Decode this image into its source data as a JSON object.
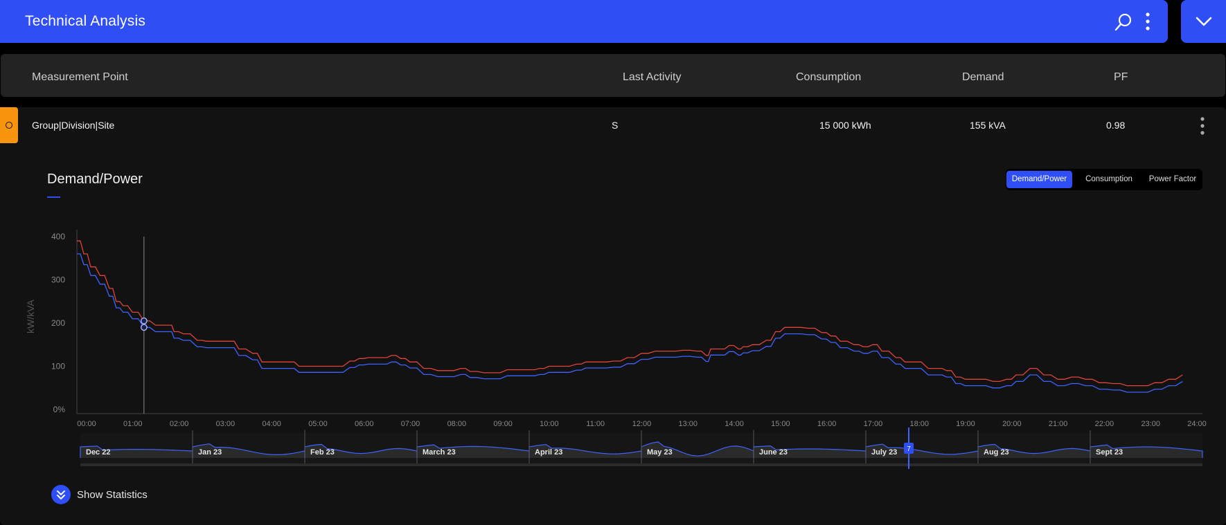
{
  "app": {
    "title": "Technical Analysis"
  },
  "header_icons": [
    "search-icon",
    "kebab-menu-icon",
    "chevron-down-icon"
  ],
  "table": {
    "columns": [
      "Measurement Point",
      "Last Activity",
      "Consumption",
      "Demand",
      "PF"
    ],
    "row": {
      "measurement_point": "Group|Division|Site",
      "last_activity": "S",
      "consumption": "15 000 kWh",
      "demand": "155 kVA",
      "pf": "0.98"
    }
  },
  "chart_panel": {
    "title": "Demand/Power",
    "tabs": [
      {
        "label": "Demand/Power",
        "active": true
      },
      {
        "label": "Consumption",
        "active": false
      },
      {
        "label": "Power Factor",
        "active": false
      }
    ],
    "show_statistics": "Show Statistics"
  },
  "colors": {
    "accent": "#2f4ff5",
    "status": "#f7950e",
    "series_demand": "#e0443a",
    "series_power": "#3e63ff"
  },
  "chart_data": {
    "type": "line",
    "ylabel": "kW/kVA",
    "y_ticks": [
      "0%",
      "100",
      "200",
      "300",
      "400"
    ],
    "ylim": [
      0,
      400
    ],
    "x_ticks": [
      "00:00",
      "01:00",
      "02:00",
      "03:00",
      "04:00",
      "05:00",
      "06:00",
      "07:00",
      "08:00",
      "09:00",
      "10:00",
      "11:00",
      "12:00",
      "13:00",
      "14:00",
      "15:00",
      "16:00",
      "17:00",
      "18:00",
      "19:00",
      "20:00",
      "21:00",
      "22:00",
      "23:00",
      "24:00"
    ],
    "cursor_time": 1.45,
    "series": [
      {
        "name": "",
        "color": "#e0443a",
        "x": [
          0,
          0.15,
          0.3,
          0.5,
          0.7,
          0.85,
          1.0,
          1.2,
          1.45,
          1.7,
          2.0,
          2.1,
          2.3,
          2.6,
          2.8,
          3.0,
          3.3,
          3.5,
          3.8,
          4.0,
          4.3,
          4.6,
          4.8,
          5.0,
          5.3,
          5.6,
          5.9,
          6.1,
          6.3,
          6.6,
          6.8,
          7.0,
          7.2,
          7.5,
          7.8,
          8.0,
          8.3,
          8.5,
          8.8,
          9.0,
          9.3,
          9.6,
          9.8,
          10.0,
          10.2,
          10.5,
          10.8,
          11.0,
          11.3,
          11.6,
          11.9,
          12.2,
          12.5,
          12.8,
          13.1,
          13.4,
          13.6,
          13.7,
          13.9,
          14.1,
          14.3,
          14.4,
          14.6,
          14.9,
          15.1,
          15.3,
          15.5,
          15.8,
          16.1,
          16.3,
          16.5,
          16.8,
          17.0,
          17.2,
          17.4,
          17.7,
          17.9,
          18.1,
          18.4,
          18.6,
          18.8,
          19.0,
          19.2,
          19.5,
          19.8,
          20.1,
          20.3,
          20.6,
          20.9,
          21.2,
          21.5,
          21.8,
          22.1,
          22.4,
          22.7,
          23.0,
          23.3,
          23.6,
          23.9
        ],
        "y": [
          390,
          360,
          330,
          310,
          280,
          250,
          240,
          225,
          205,
          195,
          195,
          180,
          175,
          160,
          158,
          158,
          158,
          140,
          130,
          110,
          110,
          110,
          100,
          100,
          100,
          100,
          112,
          118,
          120,
          120,
          125,
          118,
          110,
          95,
          90,
          90,
          95,
          88,
          85,
          85,
          92,
          92,
          92,
          95,
          100,
          100,
          105,
          110,
          110,
          112,
          120,
          130,
          135,
          135,
          137,
          135,
          125,
          140,
          140,
          148,
          140,
          145,
          150,
          160,
          180,
          190,
          190,
          188,
          178,
          170,
          158,
          150,
          145,
          150,
          135,
          120,
          110,
          110,
          95,
          95,
          90,
          75,
          70,
          70,
          65,
          70,
          80,
          95,
          80,
          70,
          75,
          70,
          62,
          60,
          55,
          55,
          62,
          70,
          80
        ]
      },
      {
        "name": "",
        "color": "#3e63ff",
        "x": [
          0,
          0.15,
          0.3,
          0.5,
          0.7,
          0.85,
          1.0,
          1.2,
          1.45,
          1.7,
          2.0,
          2.1,
          2.3,
          2.6,
          2.8,
          3.0,
          3.3,
          3.5,
          3.8,
          4.0,
          4.3,
          4.6,
          4.8,
          5.0,
          5.3,
          5.6,
          5.9,
          6.1,
          6.3,
          6.6,
          6.8,
          7.0,
          7.2,
          7.5,
          7.8,
          8.0,
          8.3,
          8.5,
          8.8,
          9.0,
          9.3,
          9.6,
          9.8,
          10.0,
          10.2,
          10.5,
          10.8,
          11.0,
          11.3,
          11.6,
          11.9,
          12.2,
          12.5,
          12.8,
          13.1,
          13.4,
          13.6,
          13.7,
          13.9,
          14.1,
          14.3,
          14.4,
          14.6,
          14.9,
          15.1,
          15.3,
          15.5,
          15.8,
          16.1,
          16.3,
          16.5,
          16.8,
          17.0,
          17.2,
          17.4,
          17.7,
          17.9,
          18.1,
          18.4,
          18.6,
          18.8,
          19.0,
          19.2,
          19.5,
          19.8,
          20.1,
          20.3,
          20.6,
          20.9,
          21.2,
          21.5,
          21.8,
          22.1,
          22.4,
          22.7,
          23.0,
          23.3,
          23.6,
          23.9
        ],
        "y": [
          360,
          335,
          310,
          290,
          262,
          235,
          225,
          210,
          190,
          180,
          180,
          165,
          160,
          145,
          143,
          143,
          143,
          125,
          115,
          95,
          95,
          95,
          86,
          86,
          86,
          86,
          97,
          103,
          105,
          105,
          110,
          103,
          96,
          81,
          76,
          76,
          81,
          74,
          71,
          71,
          78,
          78,
          78,
          81,
          86,
          86,
          91,
          96,
          96,
          98,
          106,
          116,
          121,
          121,
          123,
          121,
          111,
          126,
          126,
          134,
          126,
          131,
          136,
          146,
          165,
          175,
          175,
          173,
          163,
          155,
          143,
          135,
          130,
          135,
          120,
          105,
          95,
          95,
          80,
          80,
          75,
          60,
          55,
          55,
          50,
          55,
          65,
          80,
          65,
          55,
          60,
          55,
          47,
          45,
          40,
          40,
          47,
          55,
          65
        ]
      }
    ]
  },
  "timeline": {
    "labels": [
      "Dec 22",
      "Jan 23",
      "Feb 23",
      "March 23",
      "April 23",
      "May 23",
      "June 23",
      "July 23",
      "Aug 23",
      "Sept 23"
    ],
    "handle_label": "7"
  }
}
